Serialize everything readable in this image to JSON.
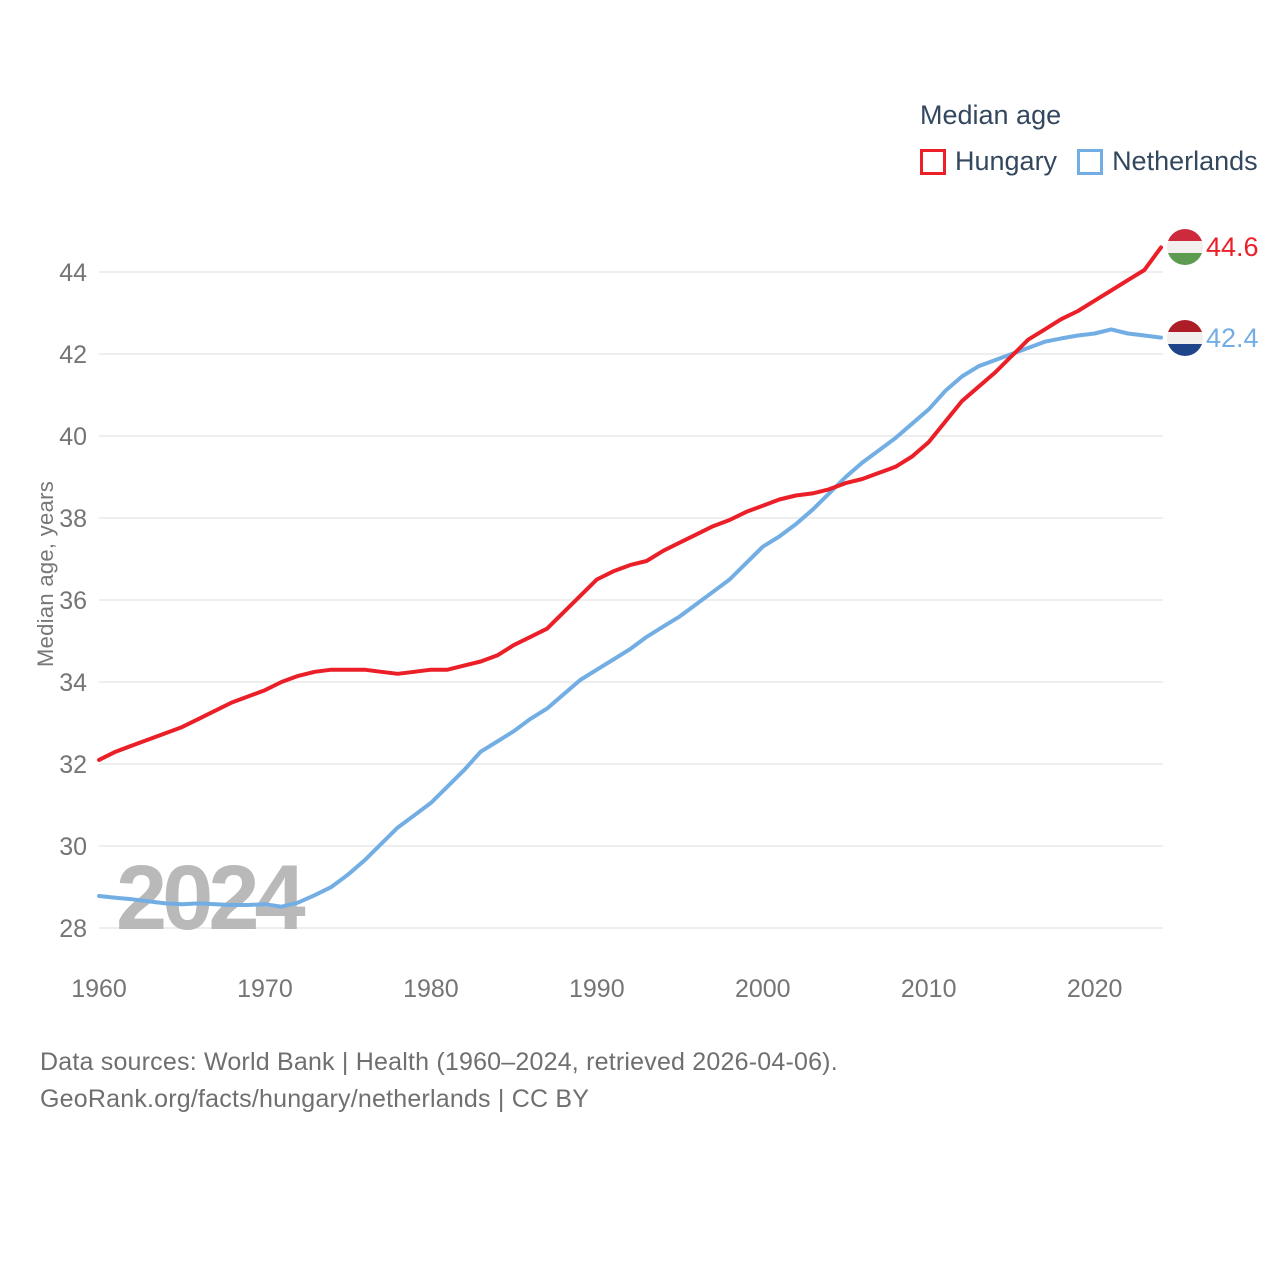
{
  "legend": {
    "title": "Median age",
    "series": [
      {
        "label": "Hungary",
        "color": "#eb1f28"
      },
      {
        "label": "Netherlands",
        "color": "#72aee4"
      }
    ]
  },
  "chart_data": {
    "type": "line",
    "title": "Median age",
    "xlabel": "",
    "ylabel": "Median age, years",
    "grid": true,
    "grid_color": "#e9e9e9",
    "tick_color": "#757575",
    "legend_position": "top-right",
    "xticks": [
      1960,
      1970,
      1980,
      1990,
      2000,
      2010,
      2020
    ],
    "yticks": [
      28,
      30,
      32,
      34,
      36,
      38,
      40,
      42,
      44
    ],
    "ylim": [
      27.5,
      45.2
    ],
    "x": [
      1960,
      1961,
      1962,
      1963,
      1964,
      1965,
      1966,
      1967,
      1968,
      1969,
      1970,
      1971,
      1972,
      1973,
      1974,
      1975,
      1976,
      1977,
      1978,
      1979,
      1980,
      1981,
      1982,
      1983,
      1984,
      1985,
      1986,
      1987,
      1988,
      1989,
      1990,
      1991,
      1992,
      1993,
      1994,
      1995,
      1996,
      1997,
      1998,
      1999,
      2000,
      2001,
      2002,
      2003,
      2004,
      2005,
      2006,
      2007,
      2008,
      2009,
      2010,
      2011,
      2012,
      2013,
      2014,
      2015,
      2016,
      2017,
      2018,
      2019,
      2020,
      2021,
      2022,
      2023,
      2024
    ],
    "series": [
      {
        "name": "Hungary",
        "color": "#eb1f28",
        "end_label": "44.6",
        "end_value": 44.6,
        "flag_colors": [
          "#cd2a3e",
          "#f2f0ee",
          "#5d9b50"
        ],
        "values": [
          32.1,
          32.3,
          32.45,
          32.6,
          32.75,
          32.9,
          33.1,
          33.3,
          33.5,
          33.65,
          33.8,
          34.0,
          34.15,
          34.25,
          34.3,
          34.3,
          34.3,
          34.25,
          34.2,
          34.25,
          34.3,
          34.3,
          34.4,
          34.5,
          34.65,
          34.9,
          35.1,
          35.3,
          35.7,
          36.1,
          36.5,
          36.7,
          36.85,
          36.95,
          37.2,
          37.4,
          37.6,
          37.8,
          37.95,
          38.15,
          38.3,
          38.45,
          38.55,
          38.6,
          38.7,
          38.85,
          38.95,
          39.1,
          39.25,
          39.5,
          39.85,
          40.35,
          40.85,
          41.2,
          41.55,
          41.95,
          42.35,
          42.6,
          42.85,
          43.05,
          43.3,
          43.55,
          43.8,
          44.05,
          44.6
        ]
      },
      {
        "name": "Netherlands",
        "color": "#72aee4",
        "end_label": "42.4",
        "end_value": 42.4,
        "flag_colors": [
          "#ad1d28",
          "#f2f0ee",
          "#1e448a"
        ],
        "values": [
          28.78,
          28.74,
          28.7,
          28.65,
          28.6,
          28.58,
          28.6,
          28.58,
          28.56,
          28.56,
          28.58,
          28.52,
          28.62,
          28.8,
          29.0,
          29.3,
          29.65,
          30.05,
          30.45,
          30.75,
          31.05,
          31.45,
          31.85,
          32.3,
          32.55,
          32.8,
          33.1,
          33.35,
          33.7,
          34.05,
          34.3,
          34.55,
          34.8,
          35.1,
          35.35,
          35.6,
          35.9,
          36.2,
          36.5,
          36.9,
          37.3,
          37.55,
          37.85,
          38.2,
          38.6,
          39.0,
          39.35,
          39.65,
          39.95,
          40.3,
          40.65,
          41.1,
          41.45,
          41.7,
          41.85,
          42.0,
          42.15,
          42.3,
          42.38,
          42.45,
          42.5,
          42.6,
          42.5,
          42.45,
          42.4
        ]
      }
    ]
  },
  "watermark": "2024",
  "footer": {
    "line1": "Data sources: World Bank | Health (1960–2024, retrieved 2026-04-06).",
    "line2": "GeoRank.org/facts/hungary/netherlands | CC BY"
  }
}
